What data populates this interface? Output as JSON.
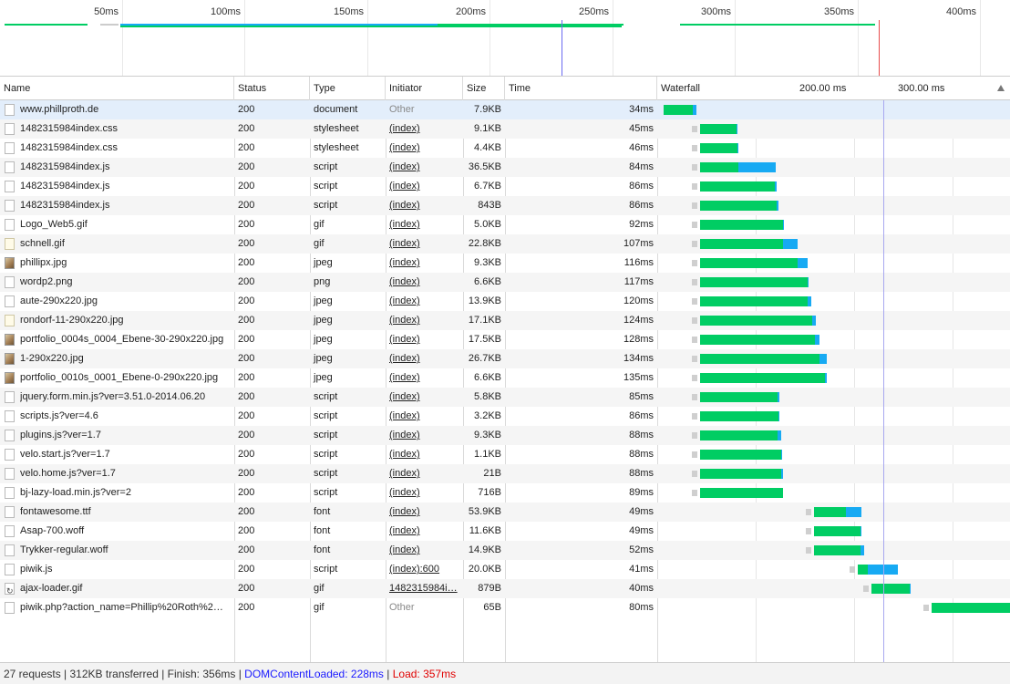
{
  "overview": {
    "ticks": [
      "50ms",
      "100ms",
      "150ms",
      "200ms",
      "250ms",
      "300ms",
      "350ms",
      "400ms"
    ],
    "colors": {
      "green": "#00cd63",
      "blue": "#17aaf3",
      "dcl": "#6a6af0",
      "load": "#e84c4c"
    }
  },
  "columns": {
    "name": "Name",
    "status": "Status",
    "type": "Type",
    "initiator": "Initiator",
    "size": "Size",
    "time": "Time",
    "waterfall": "Waterfall",
    "wf_tick_1": "200.00 ms",
    "wf_tick_2": "300.00 ms"
  },
  "rows": [
    {
      "name": "www.phillproth.de",
      "status": "200",
      "type": "document",
      "initiator": "Other",
      "size": "7.9KB",
      "time": "34ms",
      "icon": "doc",
      "start_ms": 0,
      "recv_ms": 30,
      "dl_ms": 4
    },
    {
      "name": "1482315984index.css",
      "status": "200",
      "type": "stylesheet",
      "initiator": "(index)",
      "size": "9.1KB",
      "time": "45ms",
      "icon": "doc",
      "start_ms": 37,
      "recv_ms": 37,
      "dl_ms": 1
    },
    {
      "name": "1482315984index.css",
      "status": "200",
      "type": "stylesheet",
      "initiator": "(index)",
      "size": "4.4KB",
      "time": "46ms",
      "icon": "doc",
      "start_ms": 37,
      "recv_ms": 38,
      "dl_ms": 1
    },
    {
      "name": "1482315984index.js",
      "status": "200",
      "type": "script",
      "initiator": "(index)",
      "size": "36.5KB",
      "time": "84ms",
      "icon": "doc",
      "start_ms": 37,
      "recv_ms": 39,
      "dl_ms": 38
    },
    {
      "name": "1482315984index.js",
      "status": "200",
      "type": "script",
      "initiator": "(index)",
      "size": "6.7KB",
      "time": "86ms",
      "icon": "doc",
      "start_ms": 37,
      "recv_ms": 76,
      "dl_ms": 2
    },
    {
      "name": "1482315984index.js",
      "status": "200",
      "type": "script",
      "initiator": "(index)",
      "size": "843B",
      "time": "86ms",
      "icon": "doc",
      "start_ms": 37,
      "recv_ms": 78,
      "dl_ms": 2
    },
    {
      "name": "Logo_Web5.gif",
      "status": "200",
      "type": "gif",
      "initiator": "(index)",
      "size": "5.0KB",
      "time": "92ms",
      "icon": "doc",
      "start_ms": 37,
      "recv_ms": 84,
      "dl_ms": 1
    },
    {
      "name": "schnell.gif",
      "status": "200",
      "type": "gif",
      "initiator": "(index)",
      "size": "22.8KB",
      "time": "107ms",
      "icon": "gif",
      "start_ms": 37,
      "recv_ms": 84,
      "dl_ms": 15
    },
    {
      "name": "phillipx.jpg",
      "status": "200",
      "type": "jpeg",
      "initiator": "(index)",
      "size": "9.3KB",
      "time": "116ms",
      "icon": "img",
      "start_ms": 37,
      "recv_ms": 99,
      "dl_ms": 10
    },
    {
      "name": "wordp2.png",
      "status": "200",
      "type": "png",
      "initiator": "(index)",
      "size": "6.6KB",
      "time": "117ms",
      "icon": "doc",
      "start_ms": 37,
      "recv_ms": 109,
      "dl_ms": 1
    },
    {
      "name": "aute-290x220.jpg",
      "status": "200",
      "type": "jpeg",
      "initiator": "(index)",
      "size": "13.9KB",
      "time": "120ms",
      "icon": "doc",
      "start_ms": 37,
      "recv_ms": 109,
      "dl_ms": 4
    },
    {
      "name": "rondorf-11-290x220.jpg",
      "status": "200",
      "type": "jpeg",
      "initiator": "(index)",
      "size": "17.1KB",
      "time": "124ms",
      "icon": "gif",
      "start_ms": 37,
      "recv_ms": 114,
      "dl_ms": 4
    },
    {
      "name": "portfolio_0004s_0004_Ebene-30-290x220.jpg",
      "status": "200",
      "type": "jpeg",
      "initiator": "(index)",
      "size": "17.5KB",
      "time": "128ms",
      "icon": "img",
      "start_ms": 37,
      "recv_ms": 117,
      "dl_ms": 5
    },
    {
      "name": "1-290x220.jpg",
      "status": "200",
      "type": "jpeg",
      "initiator": "(index)",
      "size": "26.7KB",
      "time": "134ms",
      "icon": "img",
      "start_ms": 37,
      "recv_ms": 121,
      "dl_ms": 7
    },
    {
      "name": "portfolio_0010s_0001_Ebene-0-290x220.jpg",
      "status": "200",
      "type": "jpeg",
      "initiator": "(index)",
      "size": "6.6KB",
      "time": "135ms",
      "icon": "img",
      "start_ms": 37,
      "recv_ms": 127,
      "dl_ms": 2
    },
    {
      "name": "jquery.form.min.js?ver=3.51.0-2014.06.20",
      "status": "200",
      "type": "script",
      "initiator": "(index)",
      "size": "5.8KB",
      "time": "85ms",
      "icon": "doc",
      "start_ms": 37,
      "recv_ms": 79,
      "dl_ms": 2
    },
    {
      "name": "scripts.js?ver=4.6",
      "status": "200",
      "type": "script",
      "initiator": "(index)",
      "size": "3.2KB",
      "time": "86ms",
      "icon": "doc",
      "start_ms": 37,
      "recv_ms": 80,
      "dl_ms": 1
    },
    {
      "name": "plugins.js?ver=1.7",
      "status": "200",
      "type": "script",
      "initiator": "(index)",
      "size": "9.3KB",
      "time": "88ms",
      "icon": "doc",
      "start_ms": 37,
      "recv_ms": 79,
      "dl_ms": 4
    },
    {
      "name": "velo.start.js?ver=1.7",
      "status": "200",
      "type": "script",
      "initiator": "(index)",
      "size": "1.1KB",
      "time": "88ms",
      "icon": "doc",
      "start_ms": 37,
      "recv_ms": 82,
      "dl_ms": 1
    },
    {
      "name": "velo.home.js?ver=1.7",
      "status": "200",
      "type": "script",
      "initiator": "(index)",
      "size": "21B",
      "time": "88ms",
      "icon": "doc",
      "start_ms": 37,
      "recv_ms": 82,
      "dl_ms": 2
    },
    {
      "name": "bj-lazy-load.min.js?ver=2",
      "status": "200",
      "type": "script",
      "initiator": "(index)",
      "size": "716B",
      "time": "89ms",
      "icon": "doc",
      "start_ms": 37,
      "recv_ms": 84,
      "dl_ms": 0
    },
    {
      "name": "fontawesome.ttf",
      "status": "200",
      "type": "font",
      "initiator": "(index)",
      "size": "53.9KB",
      "time": "49ms",
      "icon": "doc",
      "start_ms": 153,
      "recv_ms": 32,
      "dl_ms": 16
    },
    {
      "name": "Asap-700.woff",
      "status": "200",
      "type": "font",
      "initiator": "(index)",
      "size": "11.6KB",
      "time": "49ms",
      "icon": "doc",
      "start_ms": 153,
      "recv_ms": 47,
      "dl_ms": 1
    },
    {
      "name": "Trykker-regular.woff",
      "status": "200",
      "type": "font",
      "initiator": "(index)",
      "size": "14.9KB",
      "time": "52ms",
      "icon": "doc",
      "start_ms": 153,
      "recv_ms": 47,
      "dl_ms": 4
    },
    {
      "name": "piwik.js",
      "status": "200",
      "type": "script",
      "initiator": "(index):600",
      "size": "20.0KB",
      "time": "41ms",
      "icon": "doc",
      "start_ms": 197,
      "recv_ms": 10,
      "dl_ms": 31
    },
    {
      "name": "ajax-loader.gif",
      "status": "200",
      "type": "gif",
      "initiator": "1482315984i…",
      "size": "879B",
      "time": "40ms",
      "icon": "spin",
      "start_ms": 211,
      "recv_ms": 39,
      "dl_ms": 1
    },
    {
      "name": "piwik.php?action_name=Phillip%20Roth%2…",
      "status": "200",
      "type": "gif",
      "initiator": "Other",
      "size": "65B",
      "time": "80ms",
      "icon": "doc",
      "start_ms": 272,
      "recv_ms": 80,
      "dl_ms": 0
    }
  ],
  "status_bar": {
    "summary": "27 requests | 312KB transferred | Finish: 356ms | ",
    "dcl": "DOMContentLoaded: 228ms",
    "sep": " | ",
    "load": "Load: 357ms"
  }
}
